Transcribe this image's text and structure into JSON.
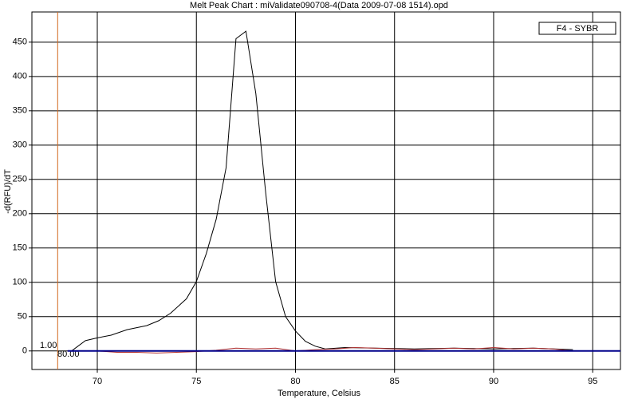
{
  "chart_data": {
    "type": "line",
    "title": "Melt Peak Chart : miValidate090708-4(Data 2009-07-08 1514).opd",
    "xlabel": "Temperature, Celsius",
    "ylabel": "-d(RFU)/dT",
    "xlim": [
      66.7,
      96.4
    ],
    "ylim": [
      -27,
      494
    ],
    "xticks": [
      70,
      75,
      80,
      85,
      90,
      95
    ],
    "yticks": [
      0,
      50,
      100,
      150,
      200,
      250,
      300,
      350,
      400,
      450
    ],
    "grid": true,
    "legend": {
      "position": "upper right",
      "label": "F4 - SYBR"
    },
    "vline": {
      "x": 68,
      "color": "#d2691e"
    },
    "annotations": [
      "1.00",
      "80.00"
    ],
    "series": [
      {
        "color": "#000000",
        "x": [
          68.7,
          69.4,
          70,
          70.7,
          71.5,
          72.5,
          73.1,
          73.7,
          74.5,
          75,
          75.5,
          76,
          76.5,
          77,
          77.5,
          78,
          78.5,
          79,
          79.5,
          80,
          80.5,
          81,
          81.5,
          82.5,
          84,
          86,
          88,
          90,
          92,
          94
        ],
        "values": [
          0,
          15,
          19,
          23,
          31,
          37,
          44,
          55,
          76,
          101,
          142,
          192,
          267,
          455,
          466,
          375,
          230,
          101,
          50,
          29,
          14,
          7,
          3,
          5,
          4,
          3,
          4,
          3,
          4,
          2
        ]
      },
      {
        "color": "#b03030",
        "x": [
          68.5,
          70,
          71,
          72,
          73,
          74,
          75,
          76,
          77,
          78,
          79,
          80,
          81,
          82,
          83,
          84,
          85,
          86,
          87,
          88,
          89,
          90,
          91,
          92,
          93,
          94
        ],
        "values": [
          0,
          0,
          -2,
          -2,
          -3,
          -2,
          -1,
          1,
          4,
          3,
          4,
          0,
          2,
          3,
          5,
          4,
          3,
          2,
          3,
          4,
          3,
          5,
          3,
          4,
          3,
          0
        ]
      },
      {
        "color": "#00008b",
        "x": [
          68.5,
          96.4
        ],
        "values": [
          0,
          0
        ]
      }
    ]
  }
}
